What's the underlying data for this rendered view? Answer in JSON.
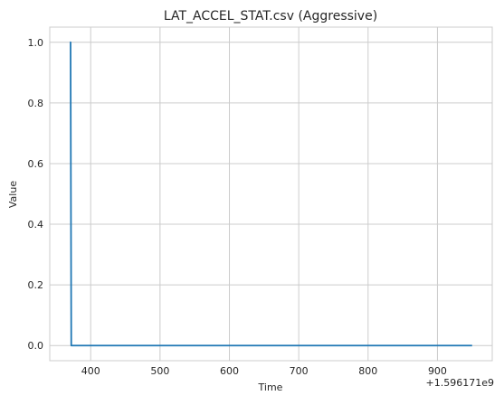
{
  "chart_data": {
    "type": "line",
    "title": "LAT_ACCEL_STAT.csv (Aggressive)",
    "xlabel": "Time",
    "ylabel": "Value",
    "x_offset_label": "+1.596171e9",
    "xlim": [
      341,
      979
    ],
    "ylim": [
      -0.05,
      1.05
    ],
    "xticks": [
      400,
      500,
      600,
      700,
      800,
      900
    ],
    "xtick_labels": [
      "400",
      "500",
      "600",
      "700",
      "800",
      "900"
    ],
    "yticks": [
      0.0,
      0.2,
      0.4,
      0.6,
      0.8,
      1.0
    ],
    "ytick_labels": [
      "0.0",
      "0.2",
      "0.4",
      "0.6",
      "0.8",
      "1.0"
    ],
    "grid": true,
    "series": [
      {
        "color": "#1f77b4",
        "x": [
          370,
          371,
          372,
          950
        ],
        "y": [
          1.0,
          1.0,
          0.0,
          0.0
        ]
      }
    ]
  }
}
